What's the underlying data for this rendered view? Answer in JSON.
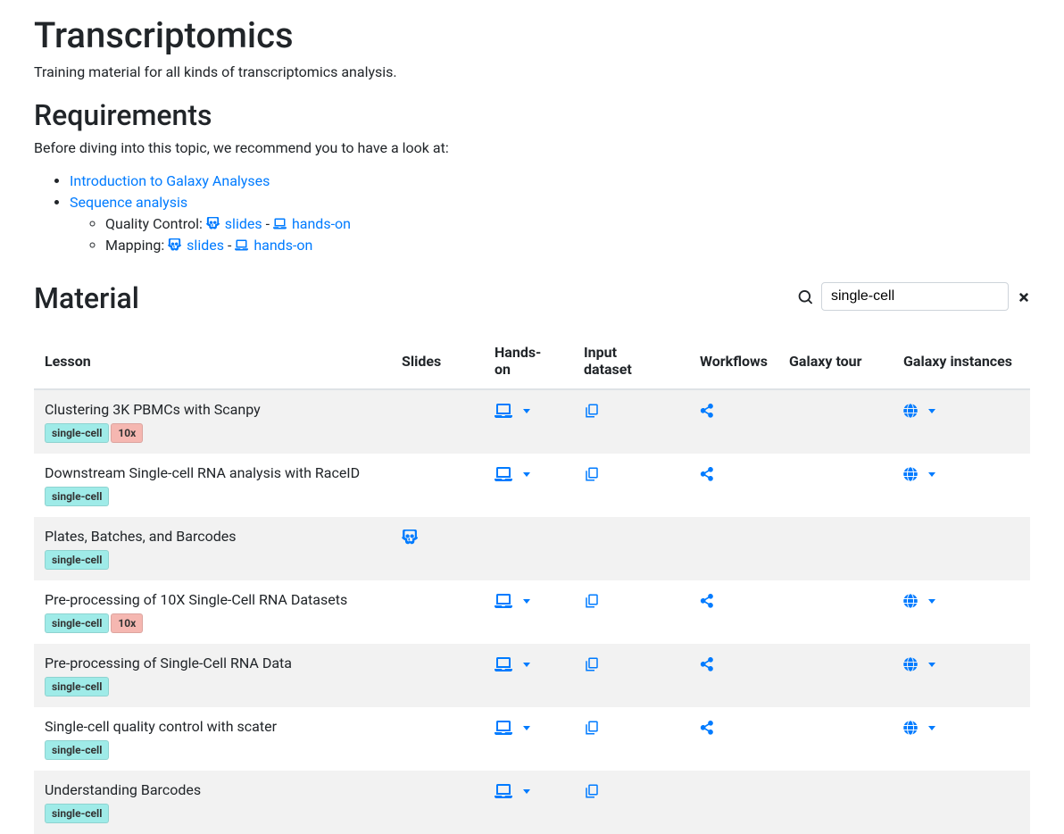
{
  "page": {
    "title": "Transcriptomics",
    "subtitle": "Training material for all kinds of transcriptomics analysis."
  },
  "requirements": {
    "heading": "Requirements",
    "intro": "Before diving into this topic, we recommend you to have a look at:",
    "links": {
      "intro_galaxy": "Introduction to Galaxy Analyses",
      "seq_analysis": "Sequence analysis",
      "qc_label": "Quality Control:",
      "mapping_label": "Mapping:",
      "slides_text": "slides",
      "handson_text": "hands-on",
      "dash": " - "
    }
  },
  "material": {
    "heading": "Material",
    "search_value": "single-cell",
    "columns": {
      "lesson": "Lesson",
      "slides": "Slides",
      "handson": "Hands-on",
      "input": "Input dataset",
      "workflows": "Workflows",
      "tour": "Galaxy tour",
      "instances": "Galaxy instances"
    },
    "tags": {
      "single_cell": "single-cell",
      "tenx": "10x"
    },
    "rows": [
      {
        "title": "Clustering 3K PBMCs with Scanpy",
        "tags": [
          "single-cell",
          "10x"
        ],
        "slides": false,
        "handson": true,
        "input": true,
        "workflows": true,
        "instances": true
      },
      {
        "title": "Downstream Single-cell RNA analysis with RaceID",
        "tags": [
          "single-cell"
        ],
        "slides": false,
        "handson": true,
        "input": true,
        "workflows": true,
        "instances": true
      },
      {
        "title": "Plates, Batches, and Barcodes",
        "tags": [
          "single-cell"
        ],
        "slides": true,
        "handson": false,
        "input": false,
        "workflows": false,
        "instances": false
      },
      {
        "title": "Pre-processing of 10X Single-Cell RNA Datasets",
        "tags": [
          "single-cell",
          "10x"
        ],
        "slides": false,
        "handson": true,
        "input": true,
        "workflows": true,
        "instances": true
      },
      {
        "title": "Pre-processing of Single-Cell RNA Data",
        "tags": [
          "single-cell"
        ],
        "slides": false,
        "handson": true,
        "input": true,
        "workflows": true,
        "instances": true
      },
      {
        "title": "Single-cell quality control with scater",
        "tags": [
          "single-cell"
        ],
        "slides": false,
        "handson": true,
        "input": true,
        "workflows": true,
        "instances": true
      },
      {
        "title": "Understanding Barcodes",
        "tags": [
          "single-cell"
        ],
        "slides": false,
        "handson": true,
        "input": true,
        "workflows": false,
        "instances": false
      }
    ]
  },
  "colors": {
    "link": "#007bff",
    "tag_teal": "#9febe8",
    "tag_red": "#f5b7b1",
    "stripe": "#f2f2f2"
  }
}
